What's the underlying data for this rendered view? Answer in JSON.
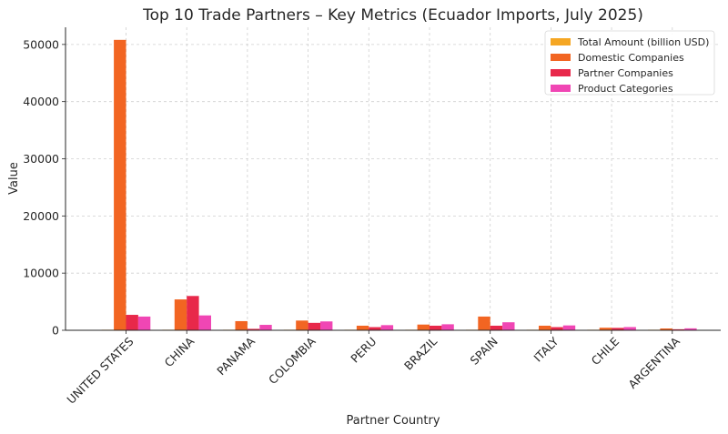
{
  "chart_data": {
    "type": "bar",
    "title": "Top 10 Trade Partners – Key Metrics (Ecuador Imports, July 2025)",
    "xlabel": "Partner Country",
    "ylabel": "Value",
    "ylim": [
      0,
      53000
    ],
    "yticks": [
      0,
      10000,
      20000,
      30000,
      40000,
      50000
    ],
    "grid": true,
    "legend_position": "top-right",
    "categories": [
      "UNITED STATES",
      "CHINA",
      "PANAMA",
      "COLOMBIA",
      "PERU",
      "BRAZIL",
      "SPAIN",
      "ITALY",
      "CHILE",
      "ARGENTINA"
    ],
    "series": [
      {
        "name": "Total Amount (billion USD)",
        "color": "#f5a623",
        "values": [
          1.9,
          0.9,
          0.2,
          0.4,
          0.2,
          0.2,
          0.1,
          0.1,
          0.1,
          0.1
        ]
      },
      {
        "name": "Domestic Companies",
        "color": "#f26522",
        "values": [
          50800,
          5400,
          1600,
          1700,
          800,
          1000,
          2400,
          800,
          450,
          320
        ]
      },
      {
        "name": "Partner Companies",
        "color": "#e8284a",
        "values": [
          2700,
          6000,
          250,
          1300,
          550,
          800,
          800,
          550,
          420,
          180
        ]
      },
      {
        "name": "Product Categories",
        "color": "#f046b4",
        "values": [
          2400,
          2600,
          950,
          1550,
          900,
          1050,
          1400,
          850,
          560,
          340
        ]
      }
    ]
  }
}
